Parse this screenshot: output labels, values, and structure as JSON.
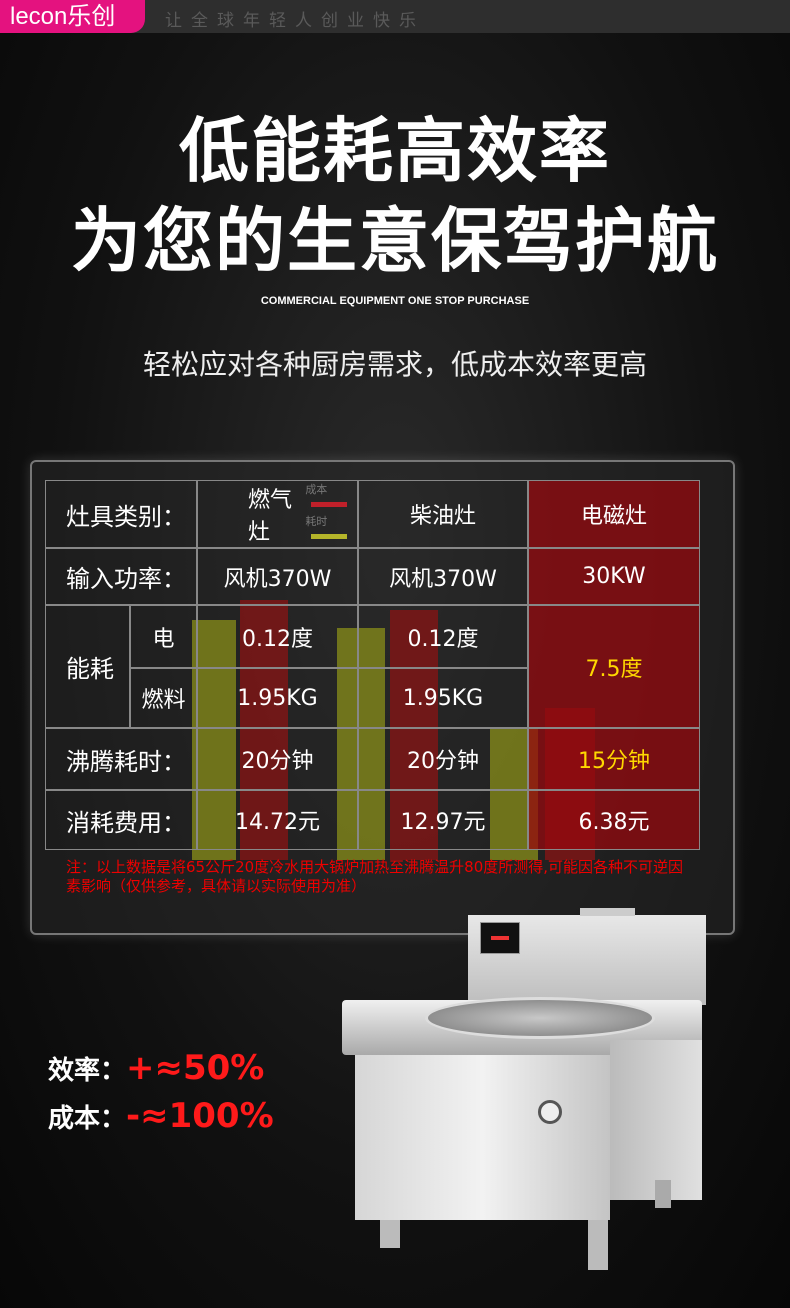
{
  "brand": {
    "logo": "lecon乐创",
    "slogan": "让全球年轻人创业快乐"
  },
  "headline": {
    "line1": "低能耗高效率",
    "line2": "为您的生意保驾护航"
  },
  "subtitle_en": "COMMERCIAL EQUIPMENT ONE STOP PURCHASE",
  "subtitle_cn": "轻松应对各种厨房需求，低成本效率更高",
  "legend": {
    "cost": "成本",
    "time": "耗时",
    "cost_color": "#c0202a",
    "time_color": "#b5b52a"
  },
  "table": {
    "headers": [
      "灶具类别：",
      "燃气灶",
      "柴油灶",
      "电磁灶"
    ],
    "power": {
      "label": "输入功率：",
      "values": [
        "风机370W",
        "风机370W",
        "30KW"
      ]
    },
    "energy": {
      "label": "能耗",
      "sub_electric": "电",
      "sub_fuel": "燃料",
      "electric": [
        "0.12度",
        "0.12度"
      ],
      "fuel": [
        "1.95KG",
        "1.95KG"
      ],
      "induction": "7.5度"
    },
    "boil": {
      "label": "沸腾耗时：",
      "values": [
        "20分钟",
        "20分钟",
        "15分钟"
      ]
    },
    "cost": {
      "label": "消耗费用：",
      "values": [
        "14.72元",
        "12.97元",
        "6.38元"
      ]
    }
  },
  "note": "注：以上数据是将65公斤20度冷水用大锅炉加热至沸腾温升80度所测得,可能因各种不可逆因素影响（仅供参考，具体请以实际使用为准）",
  "stats": [
    {
      "label": "效率：",
      "value": "+≈50%"
    },
    {
      "label": "成本：",
      "value": "-≈100%"
    }
  ],
  "accent": "#e4127f"
}
